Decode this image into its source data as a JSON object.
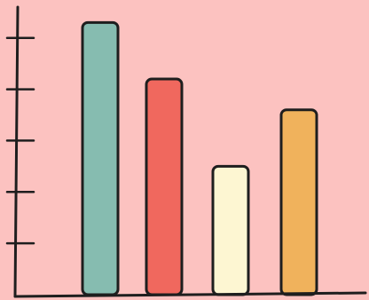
{
  "chart_data": {
    "type": "bar",
    "categories": [
      "",
      "",
      "",
      ""
    ],
    "values": [
      5.3,
      4.2,
      2.5,
      3.6
    ],
    "ylim": [
      0,
      5.6
    ],
    "yticks": [
      1,
      2,
      3,
      4,
      5
    ],
    "grid": false,
    "title": "",
    "xlabel": "",
    "ylabel": ""
  },
  "colors": {
    "background": "#fcc2c0",
    "axis": "#1e1e1e",
    "bars": [
      "#86bcb0",
      "#f0685e",
      "#fdf6d2",
      "#f0b25c"
    ]
  }
}
